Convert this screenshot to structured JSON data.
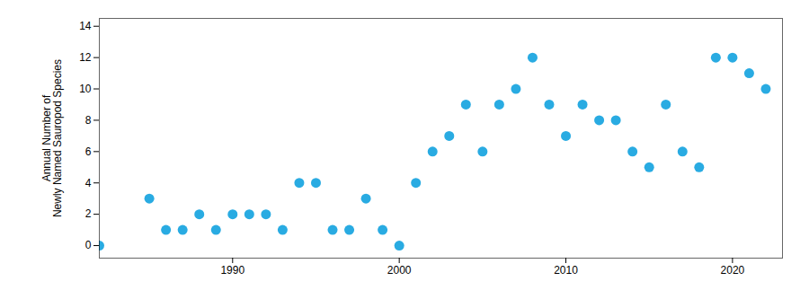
{
  "chart_data": {
    "type": "scatter",
    "ylabel": "Annual Number of\nNewly Named Sauropod Species",
    "x": [
      1982,
      1985,
      1986,
      1987,
      1988,
      1989,
      1990,
      1991,
      1992,
      1993,
      1994,
      1995,
      1996,
      1997,
      1998,
      1999,
      2000,
      2001,
      2002,
      2003,
      2004,
      2005,
      2006,
      2007,
      2008,
      2009,
      2010,
      2011,
      2012,
      2013,
      2014,
      2015,
      2016,
      2017,
      2018,
      2019,
      2020,
      2021,
      2022
    ],
    "values": [
      0,
      3,
      1,
      1,
      2,
      1,
      2,
      2,
      2,
      1,
      4,
      4,
      1,
      1,
      3,
      1,
      0,
      4,
      6,
      7,
      9,
      6,
      9,
      10,
      12,
      9,
      7,
      9,
      8,
      8,
      6,
      5,
      9,
      6,
      5,
      12,
      12,
      11,
      10
    ],
    "color": "#29ABE2",
    "xlim": [
      1982,
      2023
    ],
    "ylim": [
      -0.8,
      14.5
    ],
    "xticks": [
      1990,
      2000,
      2010,
      2020
    ],
    "yticks": [
      0,
      2,
      4,
      6,
      8,
      10,
      12,
      14
    ],
    "grid": false
  }
}
